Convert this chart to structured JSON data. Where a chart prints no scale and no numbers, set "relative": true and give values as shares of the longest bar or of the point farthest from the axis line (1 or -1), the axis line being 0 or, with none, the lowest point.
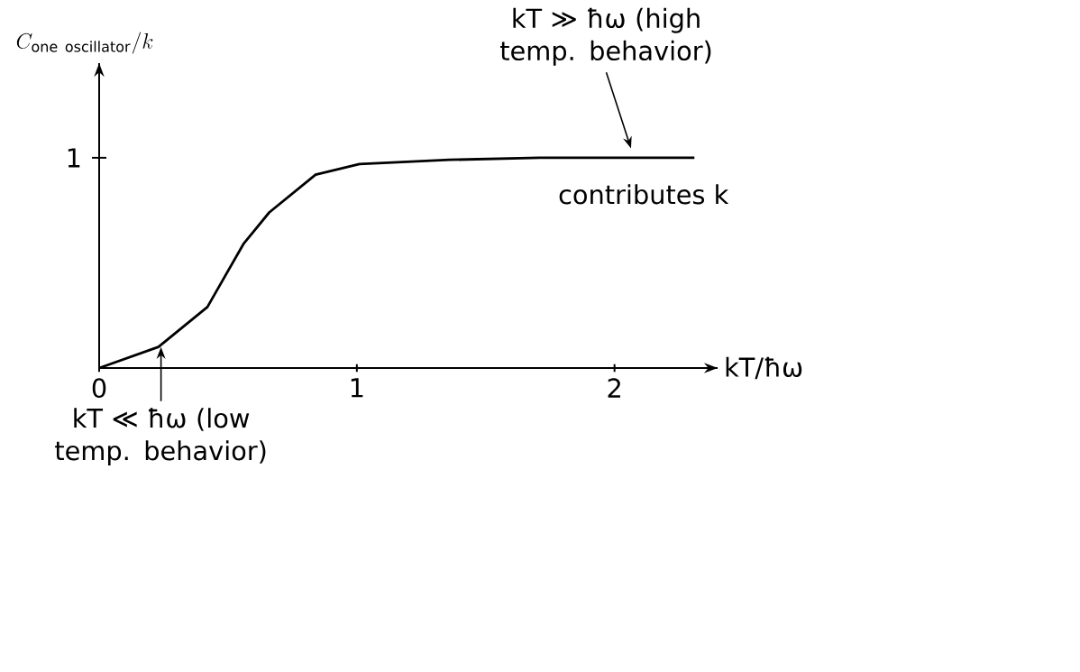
{
  "chart_data": {
    "type": "line",
    "xlabel": "kT/ħω",
    "relative": true,
    "x": [
      0,
      0.23,
      0.42,
      0.56,
      0.66,
      0.84,
      1.01,
      1.36,
      1.71,
      2.31
    ],
    "series": [
      {
        "color": "#000000",
        "values": [
          0,
          0.1,
          0.29,
          0.59,
          0.74,
          0.92,
          0.97,
          0.99,
          1.0,
          1.0
        ]
      }
    ],
    "xlim": [
      0,
      2.4
    ],
    "xticks": [
      0,
      1,
      2
    ],
    "marker": "none",
    "line_style": "solid",
    "grid": false,
    "annotations": [
      "kT ≫ ħω (high temp. behavior)",
      "contributes k",
      "1",
      "C_{\\mathrm{one\\ oscillator}}/k",
      {
        "text": "kT ≪ ħω (low temp. behavior)",
        "x": 0.24,
        "y": 0.1
      }
    ]
  }
}
